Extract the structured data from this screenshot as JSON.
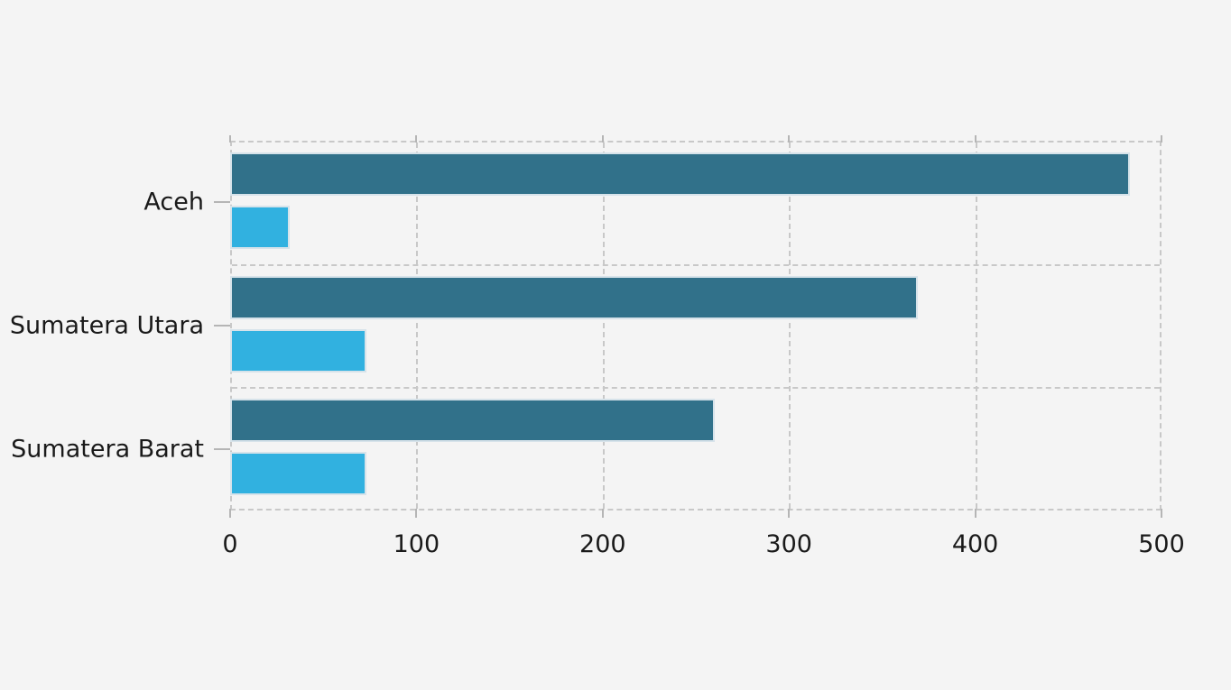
{
  "figure": {
    "background_color": "#f4f4f4",
    "grid_color": "#c8c8c8",
    "tick_color": "#b5b5b5",
    "text_color": "#1a1a1a",
    "bar_border_color": "#d7e3ea"
  },
  "chart_data": {
    "type": "bar",
    "orientation": "horizontal",
    "title": "",
    "xlabel": "",
    "ylabel": "",
    "categories": [
      "Aceh",
      "Sumatera Utara",
      "Sumatera Barat"
    ],
    "series": [
      {
        "name": "series_1",
        "color": "#31718a",
        "values": [
          483,
          369,
          260
        ]
      },
      {
        "name": "series_2",
        "color": "#31b1e0",
        "values": [
          32,
          73,
          73
        ]
      }
    ],
    "x_ticks": [
      0,
      100,
      200,
      300,
      400,
      500
    ],
    "x_tick_labels": [
      "0",
      "100",
      "200",
      "300",
      "400",
      "500"
    ],
    "xlim": [
      0,
      500
    ],
    "grid": "dashed",
    "legend_position": "none"
  }
}
